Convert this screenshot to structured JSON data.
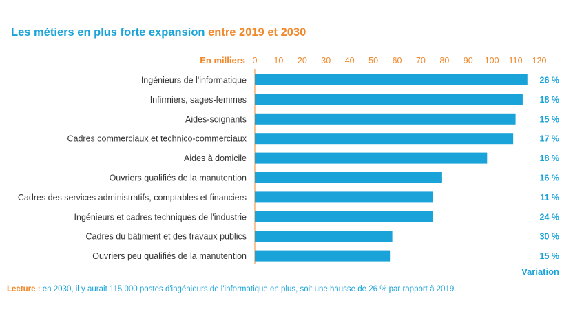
{
  "title": {
    "part1": "Les métiers en plus forte expansion",
    "part2": "entre 2019 et 2030"
  },
  "chart_data": {
    "type": "bar",
    "orientation": "horizontal",
    "unit_label": "En milliers",
    "variation_label": "Variation",
    "xlim": [
      0,
      120
    ],
    "ticks": [
      0,
      10,
      20,
      30,
      40,
      50,
      60,
      70,
      80,
      90,
      100,
      110,
      120
    ],
    "categories": [
      "Ingénieurs de l'informatique",
      "Infirmiers, sages-femmes",
      "Aides-soignants",
      "Cadres commerciaux et technico-commerciaux",
      "Aides à domicile",
      "Ouvriers qualifiés de la manutention",
      "Cadres des services administratifs, comptables et financiers",
      "Ingénieurs et cadres techniques de l'industrie",
      "Cadres du bâtiment et des travaux publics",
      "Ouvriers peu qualifiés de la manutention"
    ],
    "values": [
      115,
      113,
      110,
      109,
      98,
      79,
      75,
      75,
      58,
      57
    ],
    "variations": [
      "26 %",
      "18 %",
      "15 %",
      "17 %",
      "18 %",
      "16 %",
      "11 %",
      "24 %",
      "30 %",
      "15 %"
    ],
    "colors": {
      "bar": "#1aa3d8",
      "axis": "#f0882c",
      "label": "#333333",
      "variation": "#1aa3d8",
      "tick": "#f0882c"
    }
  },
  "lecture": {
    "label": "Lecture :",
    "text": "en 2030, il y aurait 115 000 postes d'ingénieurs de l'informatique en plus, soit une hausse de 26 % par rapport à 2019."
  }
}
